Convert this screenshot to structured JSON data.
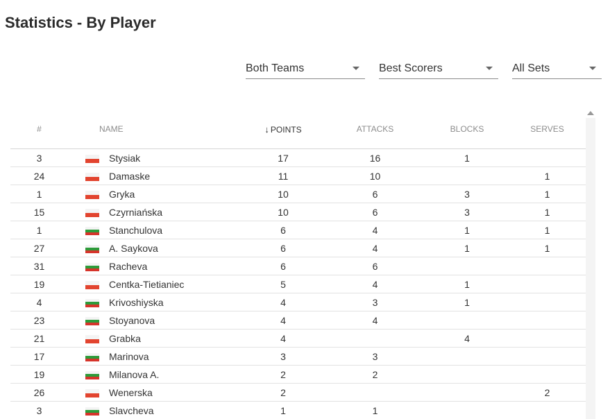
{
  "title": "Statistics - By Player",
  "filters": [
    {
      "label": "Both Teams"
    },
    {
      "label": "Best Scorers"
    },
    {
      "label": "All Sets"
    }
  ],
  "columns": {
    "num": "#",
    "name": "Name",
    "points": "POINTS",
    "attacks": "ATTACKS",
    "blocks": "BLOCKS",
    "serves": "SERVES"
  },
  "sort_icon": "arrow-down",
  "rows": [
    {
      "num": "3",
      "flag": "pl",
      "name": "Stysiak",
      "points": "17",
      "attacks": "16",
      "blocks": "1",
      "serves": ""
    },
    {
      "num": "24",
      "flag": "pl",
      "name": "Damaske",
      "points": "11",
      "attacks": "10",
      "blocks": "",
      "serves": "1"
    },
    {
      "num": "1",
      "flag": "pl",
      "name": "Gryka",
      "points": "10",
      "attacks": "6",
      "blocks": "3",
      "serves": "1"
    },
    {
      "num": "15",
      "flag": "pl",
      "name": "Czyrniańska",
      "points": "10",
      "attacks": "6",
      "blocks": "3",
      "serves": "1"
    },
    {
      "num": "1",
      "flag": "bg",
      "name": "Stanchulova",
      "points": "6",
      "attacks": "4",
      "blocks": "1",
      "serves": "1"
    },
    {
      "num": "27",
      "flag": "bg",
      "name": "A. Saykova",
      "points": "6",
      "attacks": "4",
      "blocks": "1",
      "serves": "1"
    },
    {
      "num": "31",
      "flag": "bg",
      "name": "Racheva",
      "points": "6",
      "attacks": "6",
      "blocks": "",
      "serves": ""
    },
    {
      "num": "19",
      "flag": "pl",
      "name": "Centka-Tietianiec",
      "points": "5",
      "attacks": "4",
      "blocks": "1",
      "serves": ""
    },
    {
      "num": "4",
      "flag": "bg",
      "name": "Krivoshiyska",
      "points": "4",
      "attacks": "3",
      "blocks": "1",
      "serves": ""
    },
    {
      "num": "23",
      "flag": "bg",
      "name": "Stoyanova",
      "points": "4",
      "attacks": "4",
      "blocks": "",
      "serves": ""
    },
    {
      "num": "21",
      "flag": "pl",
      "name": "Grabka",
      "points": "4",
      "attacks": "",
      "blocks": "4",
      "serves": ""
    },
    {
      "num": "17",
      "flag": "bg",
      "name": "Marinova",
      "points": "3",
      "attacks": "3",
      "blocks": "",
      "serves": ""
    },
    {
      "num": "19",
      "flag": "bg",
      "name": "Milanova A.",
      "points": "2",
      "attacks": "2",
      "blocks": "",
      "serves": ""
    },
    {
      "num": "26",
      "flag": "pl",
      "name": "Wenerska",
      "points": "2",
      "attacks": "",
      "blocks": "",
      "serves": "2"
    },
    {
      "num": "3",
      "flag": "bg",
      "name": "Slavcheva",
      "points": "1",
      "attacks": "1",
      "blocks": "",
      "serves": ""
    }
  ]
}
